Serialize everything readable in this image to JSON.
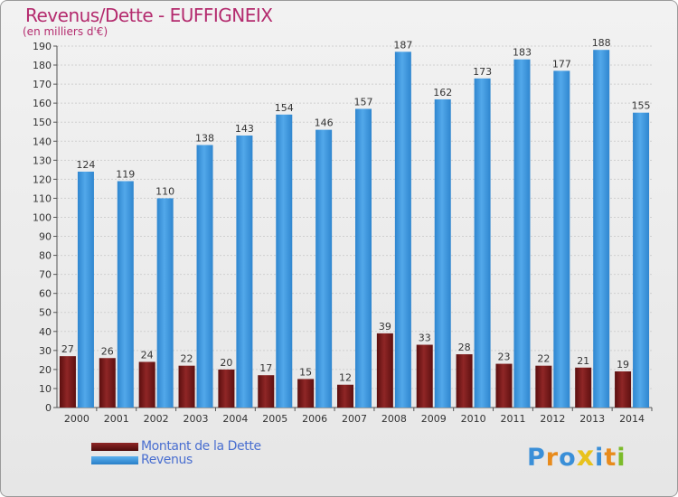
{
  "title": "Revenus/Dette - EUFFIGNEIX",
  "subtitle": "(en milliers d'€)",
  "chart_data": {
    "type": "bar",
    "categories": [
      "2000",
      "2001",
      "2002",
      "2003",
      "2004",
      "2005",
      "2006",
      "2007",
      "2008",
      "2009",
      "2010",
      "2011",
      "2012",
      "2013",
      "2014"
    ],
    "series": [
      {
        "name": "Montant de la Dette",
        "color": "#7a1a1a",
        "values": [
          27,
          26,
          24,
          22,
          20,
          17,
          15,
          12,
          39,
          33,
          28,
          23,
          22,
          21,
          19
        ]
      },
      {
        "name": "Revenus",
        "color": "#3d96dc",
        "values": [
          124,
          119,
          110,
          138,
          143,
          154,
          146,
          157,
          187,
          162,
          173,
          183,
          177,
          188,
          155
        ]
      }
    ],
    "ylim": [
      0,
      190
    ],
    "yticks": [
      0,
      10,
      20,
      30,
      40,
      50,
      60,
      70,
      80,
      90,
      100,
      110,
      120,
      130,
      140,
      150,
      160,
      170,
      180,
      190
    ],
    "grid": true,
    "legend": "bottom-left"
  },
  "logo": {
    "text": "Proxiti",
    "letters": [
      "P",
      "r",
      "o",
      "x",
      "i",
      "t",
      "i"
    ],
    "colors": [
      "#3a8fd8",
      "#e88b1c",
      "#3a8fd8",
      "#e8c21c",
      "#3a8fd8",
      "#e88b1c",
      "#7cbb2a"
    ]
  }
}
